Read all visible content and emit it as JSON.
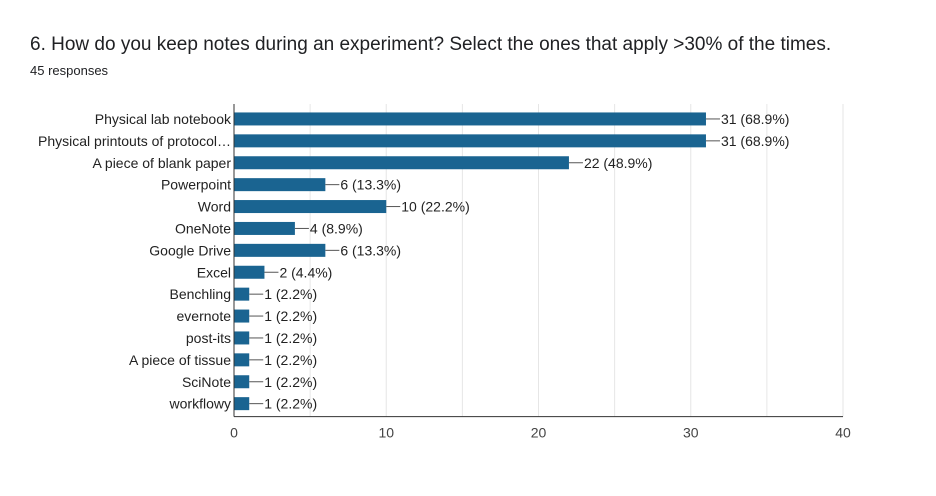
{
  "question": {
    "title": "6. How do you keep notes during an experiment? Select the ones that apply >30% of the times.",
    "responses": "45 responses"
  },
  "colors": {
    "bar": "#1a6491",
    "grid": "#e6e6e6",
    "axis": "#333333"
  },
  "chart_data": {
    "type": "bar",
    "orientation": "horizontal",
    "title": "",
    "xlabel": "",
    "ylabel": "",
    "categories": [
      "Physical lab notebook",
      "Physical printouts of protocol…",
      "A piece of blank paper",
      "Powerpoint",
      "Word",
      "OneNote",
      "Google Drive",
      "Excel",
      "Benchling",
      "evernote",
      "post-its",
      "A piece of tissue",
      "SciNote",
      "workflowy"
    ],
    "values": [
      31,
      31,
      22,
      6,
      10,
      4,
      6,
      2,
      1,
      1,
      1,
      1,
      1,
      1
    ],
    "value_labels": [
      "31 (68.9%)",
      "31 (68.9%)",
      "22 (48.9%)",
      "6 (13.3%)",
      "10 (22.2%)",
      "4 (8.9%)",
      "6 (13.3%)",
      "2 (4.4%)",
      "1 (2.2%)",
      "1 (2.2%)",
      "1 (2.2%)",
      "1 (2.2%)",
      "1 (2.2%)",
      "1 (2.2%)"
    ],
    "xlim": [
      0,
      40
    ],
    "xticks": [
      0,
      10,
      20,
      30,
      40
    ],
    "grid": true,
    "legend": "none"
  }
}
